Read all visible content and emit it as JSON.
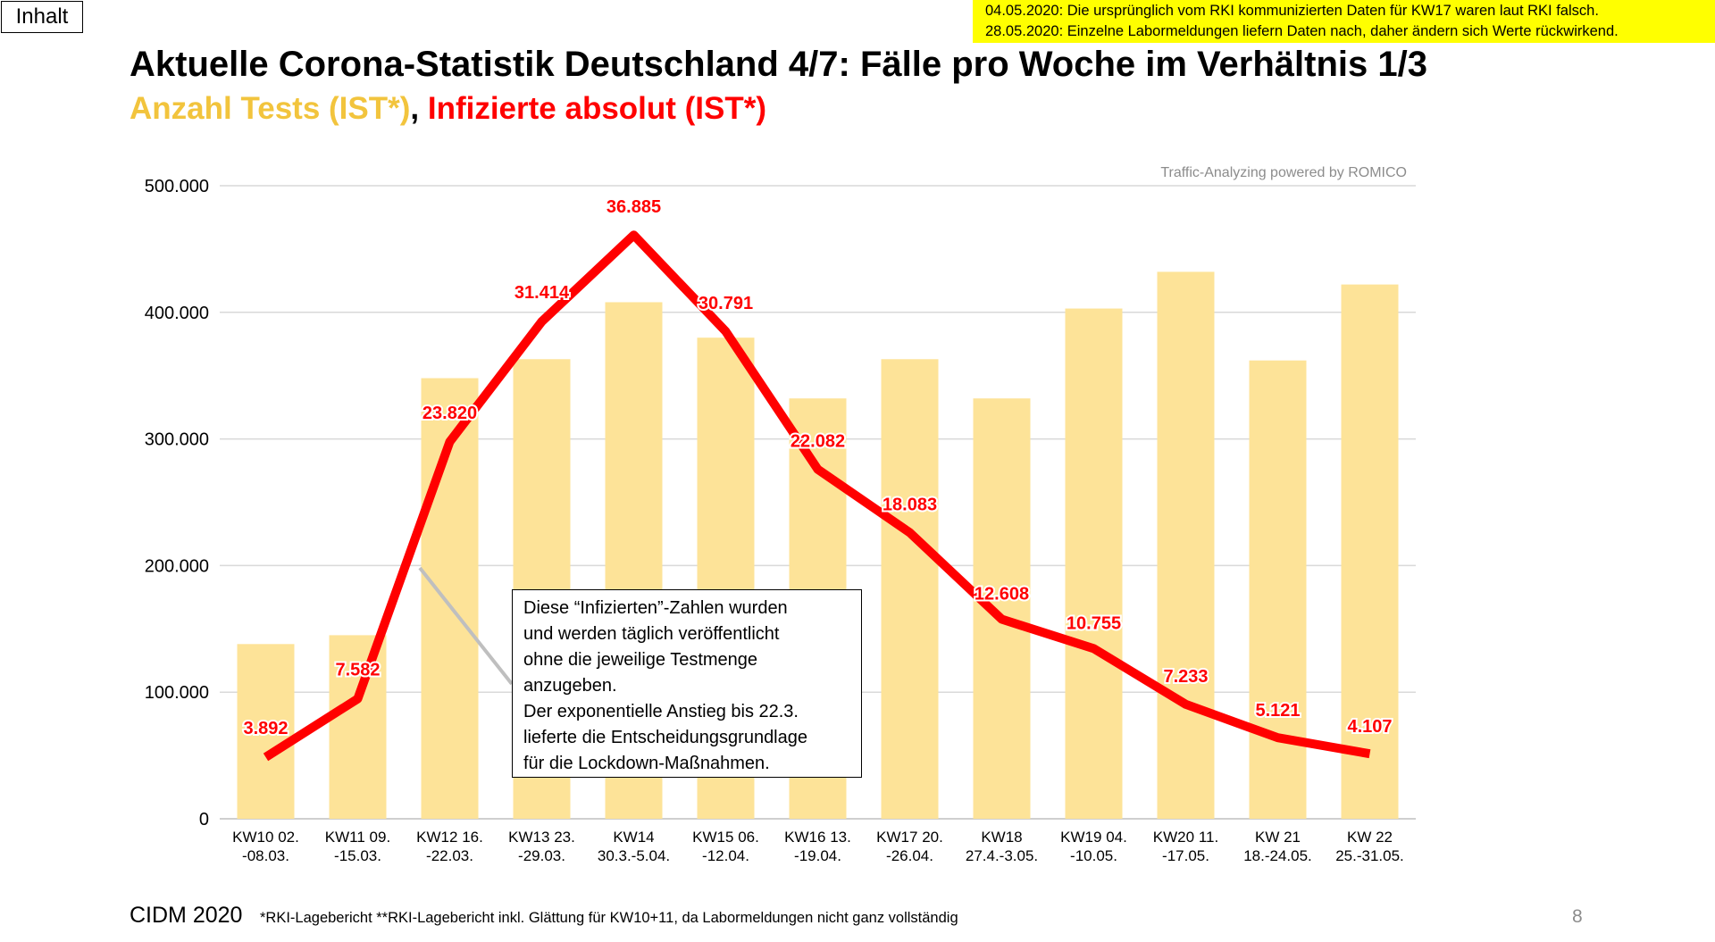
{
  "nav": {
    "contents_button": "Inhalt"
  },
  "notice": {
    "lines": [
      "04.05.2020: Die ursprünglich vom RKI kommunizierten Daten für KW17 waren laut RKI falsch.",
      "28.05.2020: Einzelne Labormeldungen liefern Daten nach, daher ändern sich Werte rückwirkend."
    ]
  },
  "title": "Aktuelle Corona-Statistik Deutschland 4/7: Fälle pro Woche im Verhältnis 1/3",
  "subtitle": {
    "tests": "Anzahl Tests (IST*)",
    "separator": ", ",
    "infected": "Infizierte absolut (IST*)"
  },
  "annotation": {
    "lines": [
      "Diese “Infizierten”-Zahlen wurden",
      "und werden täglich veröffentlicht",
      "ohne die jeweilige Testmenge",
      "anzugeben.",
      "Der exponentielle Anstieg bis 22.3.",
      "lieferte die Entscheidungsgrundlage",
      "für die Lockdown-Maßnahmen."
    ]
  },
  "footer": {
    "brand": "CIDM 2020",
    "note": "*RKI-Lagebericht   **RKI-Lagebericht inkl. Glättung für KW10+11, da Labormeldungen nicht ganz vollständig",
    "page": "8"
  },
  "colors": {
    "bar": "#fde398",
    "line": "#ff0000",
    "label": "#ff0000",
    "grid": "#d9d9d9"
  },
  "chart_data": {
    "type": "bar",
    "watermark": "Traffic-Analyzing powered by ROMICO",
    "categories": [
      [
        "KW10 02.",
        "-08.03."
      ],
      [
        "KW11 09.",
        "-15.03."
      ],
      [
        "KW12 16.",
        "-22.03."
      ],
      [
        "KW13 23.",
        "-29.03."
      ],
      [
        "KW14",
        "30.3.-5.04."
      ],
      [
        "KW15 06.",
        "-12.04."
      ],
      [
        "KW16 13.",
        "-19.04."
      ],
      [
        "KW17 20.",
        "-26.04."
      ],
      [
        "KW18",
        "27.4.-3.05."
      ],
      [
        "KW19 04.",
        "-10.05."
      ],
      [
        "KW20 11.",
        "-17.05."
      ],
      [
        "KW 21",
        "18.-24.05."
      ],
      [
        "KW 22",
        "25.-31.05."
      ]
    ],
    "ylim": [
      0,
      500000
    ],
    "yticks": [
      0,
      100000,
      200000,
      300000,
      400000,
      500000
    ],
    "ytick_labels": [
      "0",
      "100.000",
      "200.000",
      "300.000",
      "400.000",
      "500.000"
    ],
    "series": [
      {
        "type": "bar",
        "values": [
          138000,
          145000,
          348000,
          363000,
          408000,
          380000,
          332000,
          363000,
          332000,
          403000,
          432000,
          362000,
          422000
        ]
      },
      {
        "type": "line",
        "values": [
          3892,
          7582,
          23820,
          31414,
          36885,
          30791,
          22082,
          18083,
          12608,
          10755,
          7233,
          5121,
          4107
        ],
        "labels": [
          "3.892",
          "7.582",
          "23.820",
          "31.414",
          "36.885",
          "30.791",
          "22.082",
          "18.083",
          "12.608",
          "10.755",
          "7.233",
          "5.121",
          "4.107"
        ],
        "display_scale": 12.5
      }
    ]
  }
}
